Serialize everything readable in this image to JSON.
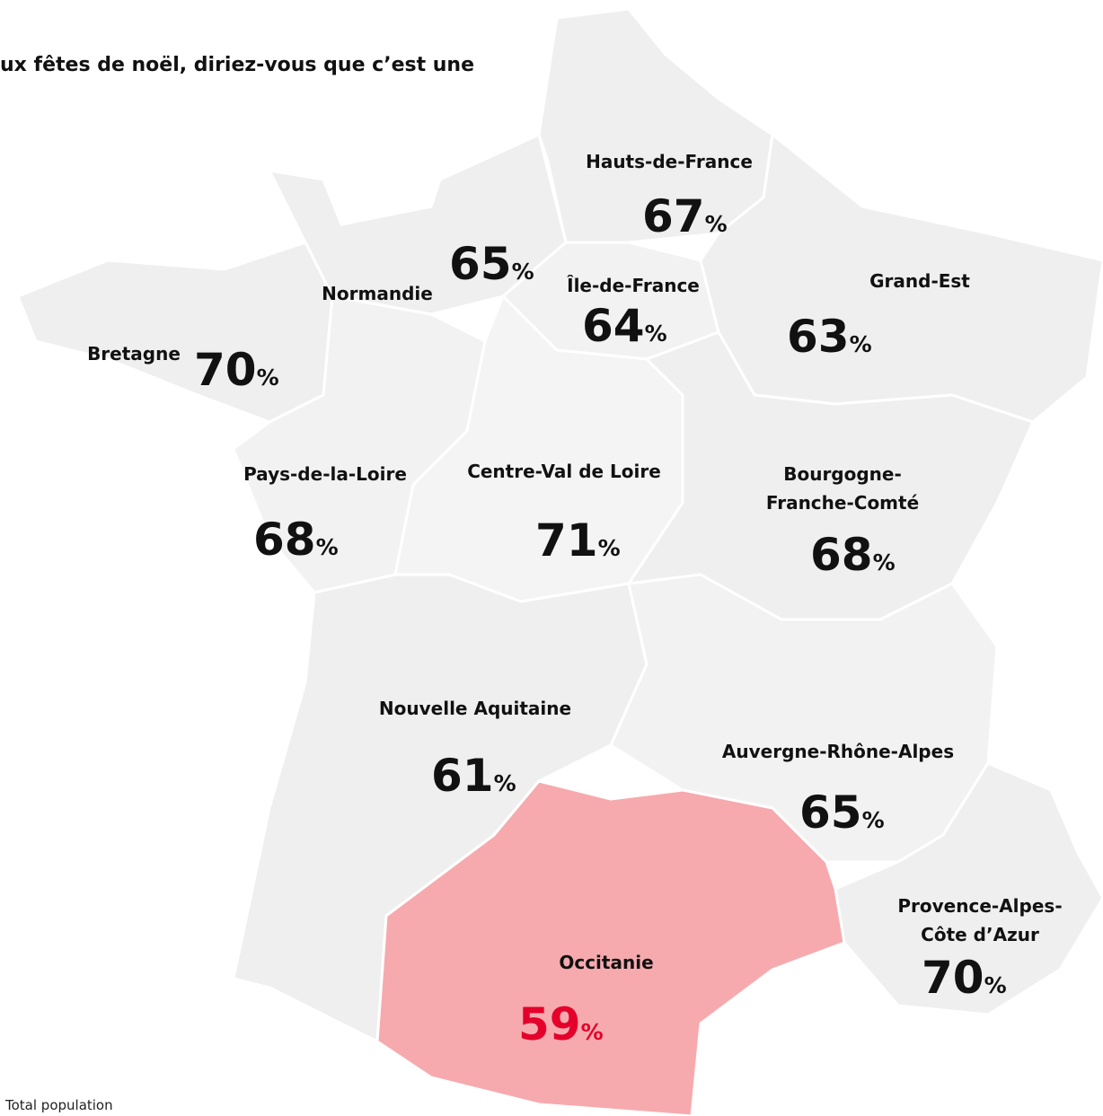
{
  "header": {
    "title": "ux fêtes de noël, diriez-vous que c’est une"
  },
  "unit": "%",
  "regions": [
    {
      "name": [
        "Hauts-de-France"
      ],
      "value": 67,
      "fill": "#efefef",
      "color": "#111111"
    },
    {
      "name": [
        "Normandie"
      ],
      "value": 65,
      "fill": "#efefef",
      "color": "#111111"
    },
    {
      "name": [
        "Île-de-France"
      ],
      "value": 64,
      "fill": "#f2f2f2",
      "color": "#111111"
    },
    {
      "name": [
        "Grand-Est"
      ],
      "value": 63,
      "fill": "#efefef",
      "color": "#111111"
    },
    {
      "name": [
        "Bretagne"
      ],
      "value": 70,
      "fill": "#efefef",
      "color": "#111111"
    },
    {
      "name": [
        "Pays-de-la-Loire"
      ],
      "value": 68,
      "fill": "#f2f2f2",
      "color": "#111111"
    },
    {
      "name": [
        "Centre-Val de Loire"
      ],
      "value": 71,
      "fill": "#f4f4f4",
      "color": "#111111"
    },
    {
      "name": [
        "Bourgogne-",
        "Franche-Comté"
      ],
      "value": 68,
      "fill": "#efefef",
      "color": "#111111"
    },
    {
      "name": [
        "Nouvelle Aquitaine"
      ],
      "value": 61,
      "fill": "#efefef",
      "color": "#111111"
    },
    {
      "name": [
        "Auvergne-Rhône-Alpes"
      ],
      "value": 65,
      "fill": "#f2f2f2",
      "color": "#111111"
    },
    {
      "name": [
        "Provence-Alpes-",
        "Côte d’Azur"
      ],
      "value": 70,
      "fill": "#efefef",
      "color": "#111111"
    },
    {
      "name": [
        "Occitanie"
      ],
      "value": 59,
      "fill": "#f6aaae",
      "color": "#e4002b"
    }
  ],
  "footnote": "Total population"
}
